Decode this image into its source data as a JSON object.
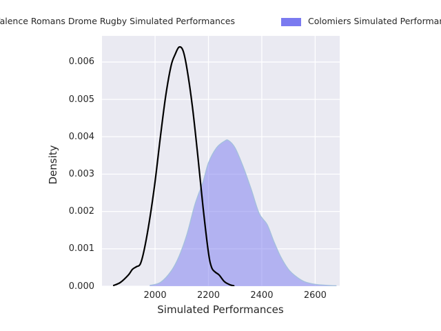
{
  "legend": {
    "items": [
      {
        "label": "Valence Romans Drome Rugby Simulated Performances",
        "swatch": "black-line",
        "color": "#000000"
      },
      {
        "label": "Colomiers Simulated Performances",
        "swatch": "purple-patch",
        "color": "#7a7af0"
      }
    ]
  },
  "axes": {
    "xlabel": "Simulated Performances",
    "ylabel": "Density"
  },
  "chart_data": {
    "type": "area",
    "title": "",
    "xlabel": "Simulated Performances",
    "ylabel": "Density",
    "xlim": [
      1801,
      2692
    ],
    "ylim": [
      0,
      0.0067
    ],
    "grid": true,
    "legend_position": "top",
    "plot_background": "#eaeaf2",
    "grid_color": "#ffffff",
    "xticks": [
      {
        "value": 2000,
        "label": "2000"
      },
      {
        "value": 2200,
        "label": "2200"
      },
      {
        "value": 2400,
        "label": "2400"
      },
      {
        "value": 2600,
        "label": "2600"
      }
    ],
    "yticks": [
      {
        "value": 0.0,
        "label": "0.000"
      },
      {
        "value": 0.001,
        "label": "0.001"
      },
      {
        "value": 0.002,
        "label": "0.002"
      },
      {
        "value": 0.003,
        "label": "0.003"
      },
      {
        "value": 0.004,
        "label": "0.004"
      },
      {
        "value": 0.005,
        "label": "0.005"
      },
      {
        "value": 0.006,
        "label": "0.006"
      }
    ],
    "series": [
      {
        "name": "Colomiers Simulated Performances",
        "style": "area",
        "fill": "#7a7af0",
        "fill_opacity": 0.5,
        "stroke": "#a4c0dd",
        "stroke_width": 1.4,
        "points": [
          [
            1980,
            2e-05
          ],
          [
            2020,
            0.0001
          ],
          [
            2060,
            0.0004
          ],
          [
            2090,
            0.0008
          ],
          [
            2120,
            0.0014
          ],
          [
            2150,
            0.0022
          ],
          [
            2180,
            0.0028
          ],
          [
            2200,
            0.0033
          ],
          [
            2230,
            0.0037
          ],
          [
            2260,
            0.00388
          ],
          [
            2275,
            0.0039
          ],
          [
            2300,
            0.0037
          ],
          [
            2330,
            0.0032
          ],
          [
            2360,
            0.0026
          ],
          [
            2390,
            0.00195
          ],
          [
            2420,
            0.00165
          ],
          [
            2445,
            0.0012
          ],
          [
            2470,
            0.0008
          ],
          [
            2500,
            0.00045
          ],
          [
            2530,
            0.00025
          ],
          [
            2560,
            0.00012
          ],
          [
            2600,
            5e-05
          ],
          [
            2650,
            2e-05
          ],
          [
            2680,
            1e-05
          ]
        ]
      },
      {
        "name": "Valence Romans Drome Rugby Simulated Performances",
        "style": "line",
        "stroke": "#000000",
        "stroke_width": 2.2,
        "points": [
          [
            1845,
            2e-05
          ],
          [
            1870,
            0.0001
          ],
          [
            1900,
            0.0003
          ],
          [
            1915,
            0.00045
          ],
          [
            1930,
            0.00052
          ],
          [
            1945,
            0.0006
          ],
          [
            1960,
            0.001
          ],
          [
            1980,
            0.0018
          ],
          [
            2000,
            0.0028
          ],
          [
            2020,
            0.004
          ],
          [
            2040,
            0.0051
          ],
          [
            2060,
            0.0059
          ],
          [
            2075,
            0.0062
          ],
          [
            2090,
            0.0064
          ],
          [
            2105,
            0.0063
          ],
          [
            2120,
            0.0058
          ],
          [
            2140,
            0.0048
          ],
          [
            2160,
            0.0035
          ],
          [
            2180,
            0.0021
          ],
          [
            2200,
            0.0009
          ],
          [
            2212,
            0.0005
          ],
          [
            2225,
            0.00038
          ],
          [
            2240,
            0.0003
          ],
          [
            2260,
            0.00012
          ],
          [
            2280,
            4e-05
          ],
          [
            2295,
            1e-05
          ]
        ]
      }
    ]
  }
}
